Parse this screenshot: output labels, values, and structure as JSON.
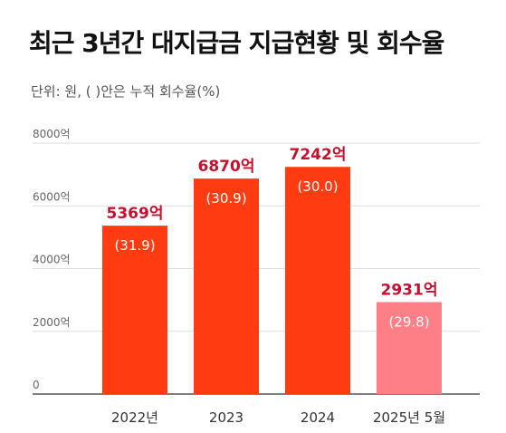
{
  "title": "최근 3년간 대지급금 지급현황 및 회수율",
  "subtitle": "단위: 원, (   )안은 누적 회수율(%)",
  "chart_data": {
    "type": "bar",
    "title": "최근 3년간 대지급금 지급현황 및 회수율",
    "categories": [
      "2022년",
      "2023",
      "2024",
      "2025년 5월"
    ],
    "values": [
      5369,
      6870,
      7242,
      2931
    ],
    "value_labels": [
      "5369억",
      "6870억",
      "7242억",
      "2931억"
    ],
    "recovery_rates": [
      "(31.9)",
      "(30.9)",
      "(30.0)",
      "(29.8)"
    ],
    "ylim": [
      0,
      8000
    ],
    "yticks": [
      0,
      2000,
      4000,
      6000,
      8000
    ],
    "ytick_labels": [
      "0",
      "2000억",
      "4000억",
      "6000억",
      "8000억"
    ],
    "grid": true,
    "colors": {
      "bar": "#ff3b12",
      "bar_highlight": "#ff7f86",
      "value_label": "#c8102e",
      "grid": "#dddddd",
      "axis": "#333333"
    }
  }
}
